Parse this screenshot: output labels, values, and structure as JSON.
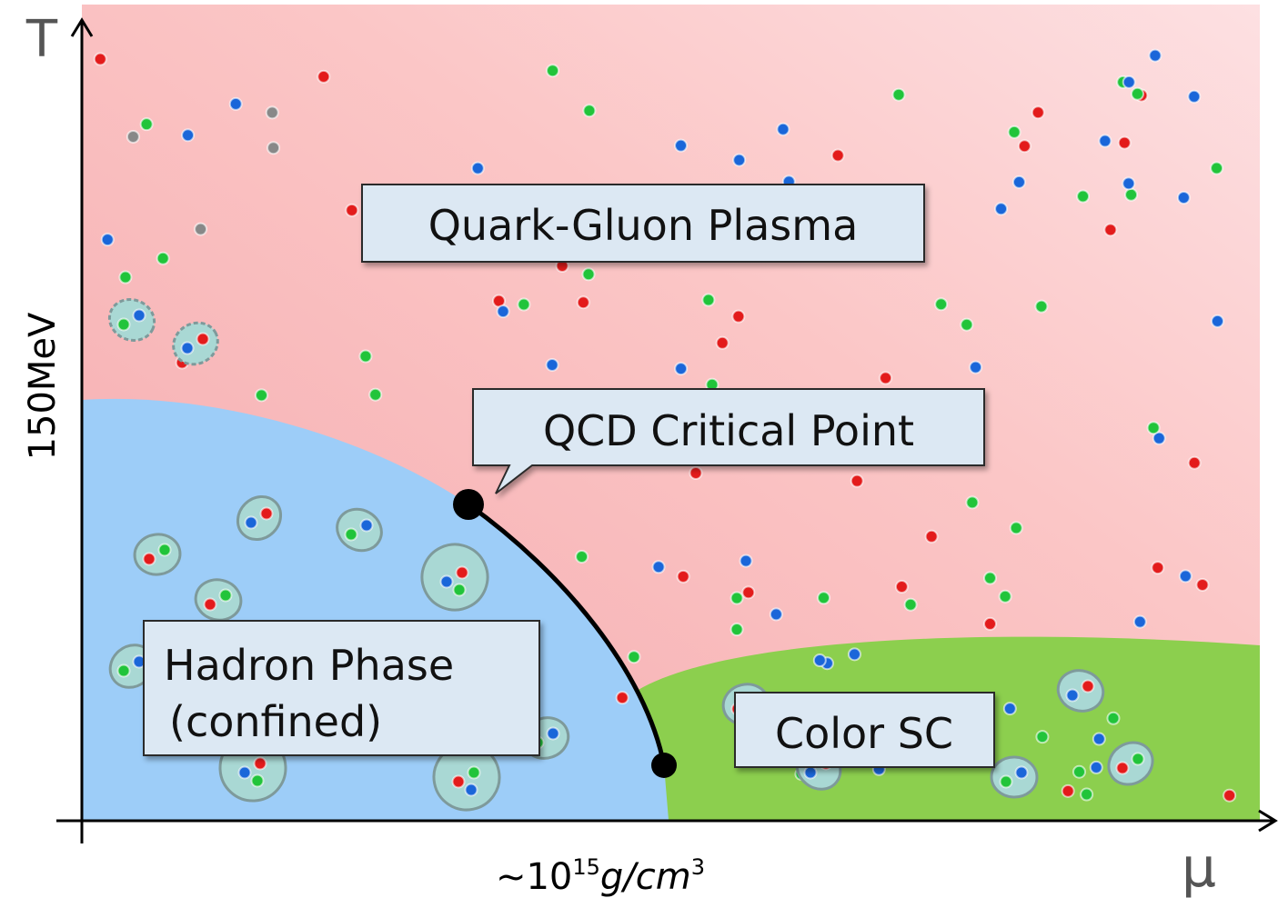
{
  "axes": {
    "y_label": "T",
    "y_tick": "150MeV",
    "x_label": "μ",
    "x_tick": {
      "prefix": "~10",
      "exponent": "15",
      "unit": "g/cm",
      "unit_exponent": "3"
    }
  },
  "regions": {
    "plasma": "Quark-Gluon Plasma",
    "critical_point": "QCD Critical Point",
    "hadron": {
      "line1": "Hadron Phase",
      "line2": "(confined)"
    },
    "color_sc": "Color SC"
  }
}
